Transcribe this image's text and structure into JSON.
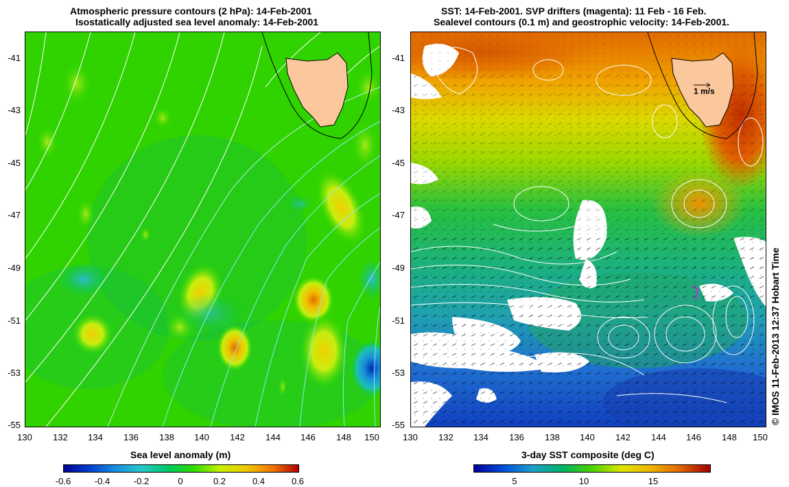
{
  "left_panel": {
    "title_line1": "Atmospheric pressure contours (2 hPa): 14-Feb-2001",
    "title_line2": "Isostatically adjusted sea level anomaly: 14-Feb-2001",
    "colorbar_title": "Sea level anomaly (m)",
    "colorbar_labels": [
      "-0.6",
      "-0.4",
      "-0.2",
      "0",
      "0.2",
      "0.4",
      "0.6"
    ]
  },
  "right_panel": {
    "title_line1": "SST: 14-Feb-2001. SVP drifters (magenta): 11 Feb - 16 Feb.",
    "title_line2": "Sealevel contours (0.1 m) and geostrophic velocity: 14-Feb-2001.",
    "scale_label": "1 m/s",
    "colorbar_title": "3-day SST composite (deg C)",
    "colorbar_labels": [
      "5",
      "10",
      "15"
    ]
  },
  "lat_ticks": [
    "-41",
    "-43",
    "-45",
    "-47",
    "-49",
    "-51",
    "-53",
    "-55"
  ],
  "lon_ticks": [
    "130",
    "132",
    "134",
    "136",
    "138",
    "140",
    "142",
    "144",
    "146",
    "148",
    "150"
  ],
  "copyright": "© IMOS 11-Feb-2013 12:37 Hobart Time",
  "colors": {
    "land": "#fbc79c",
    "sla_scale": [
      "#00008c",
      "#0050dc",
      "#28b4e6",
      "#00c864",
      "#32dc00",
      "#c8f000",
      "#f0c800",
      "#f07800",
      "#b40000"
    ],
    "sst_scale": [
      "#000096",
      "#0050dc",
      "#1ea0c8",
      "#00b464",
      "#50d200",
      "#dce600",
      "#f0b400",
      "#e06400",
      "#a00000"
    ]
  }
}
